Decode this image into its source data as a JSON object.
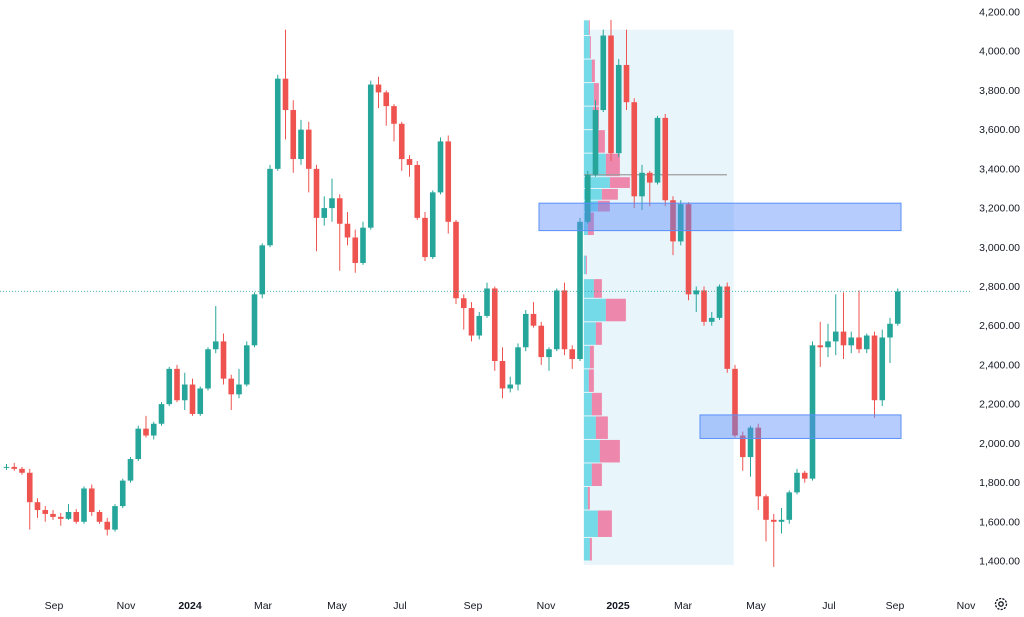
{
  "chart_data": {
    "type": "candlestick",
    "y_ticks": [
      "4,200.00",
      "4,000.00",
      "3,800.00",
      "3,600.00",
      "3,400.00",
      "3,200.00",
      "3,000.00",
      "2,800.00",
      "2,600.00",
      "2,400.00",
      "2,200.00",
      "2,000.00",
      "1,800.00",
      "1,600.00",
      "1,400.00"
    ],
    "y_tick_values": [
      4200,
      4000,
      3800,
      3600,
      3400,
      3200,
      3000,
      2800,
      2600,
      2400,
      2200,
      2000,
      1800,
      1600,
      1400
    ],
    "ylim": [
      1340,
      4240
    ],
    "x_ticks": [
      "Sep",
      "Nov",
      "2024",
      "Mar",
      "May",
      "Jul",
      "Sep",
      "Nov",
      "2025",
      "Mar",
      "May",
      "Jul",
      "Sep",
      "Nov"
    ],
    "x_tick_years": [
      "2024",
      "2025"
    ],
    "x_start": "2023-07-03",
    "weeks_visible": 125,
    "current_price": 2775,
    "colors": {
      "up": "#26a69a",
      "down": "#ef5350",
      "zone": "#5b8ff9",
      "profile_bg": "#e6f4fb",
      "vol_up": "#4dd0e1",
      "vol_down": "#f06292",
      "poc_line": "#9e9e9e"
    },
    "candles": [
      [
        1880,
        1895,
        1865,
        1880
      ],
      [
        1880,
        1900,
        1860,
        1870
      ],
      [
        1870,
        1880,
        1840,
        1850
      ],
      [
        1850,
        1870,
        1560,
        1700
      ],
      [
        1700,
        1720,
        1620,
        1660
      ],
      [
        1660,
        1680,
        1600,
        1640
      ],
      [
        1640,
        1660,
        1610,
        1625
      ],
      [
        1625,
        1645,
        1580,
        1615
      ],
      [
        1615,
        1690,
        1610,
        1650
      ],
      [
        1650,
        1665,
        1590,
        1600
      ],
      [
        1600,
        1780,
        1590,
        1770
      ],
      [
        1770,
        1790,
        1630,
        1650
      ],
      [
        1650,
        1660,
        1590,
        1600
      ],
      [
        1600,
        1620,
        1530,
        1560
      ],
      [
        1560,
        1690,
        1550,
        1680
      ],
      [
        1680,
        1820,
        1670,
        1810
      ],
      [
        1810,
        1930,
        1800,
        1920
      ],
      [
        1920,
        2090,
        1910,
        2075
      ],
      [
        2075,
        2140,
        2030,
        2040
      ],
      [
        2040,
        2110,
        2020,
        2100
      ],
      [
        2100,
        2210,
        2090,
        2200
      ],
      [
        2200,
        2390,
        2190,
        2380
      ],
      [
        2380,
        2400,
        2210,
        2220
      ],
      [
        2220,
        2360,
        2170,
        2300
      ],
      [
        2300,
        2330,
        2140,
        2150
      ],
      [
        2150,
        2290,
        2140,
        2280
      ],
      [
        2280,
        2490,
        2270,
        2480
      ],
      [
        2480,
        2700,
        2460,
        2520
      ],
      [
        2520,
        2560,
        2300,
        2330
      ],
      [
        2330,
        2350,
        2170,
        2250
      ],
      [
        2250,
        2380,
        2230,
        2300
      ],
      [
        2300,
        2520,
        2290,
        2500
      ],
      [
        2500,
        2770,
        2490,
        2760
      ],
      [
        2760,
        3020,
        2740,
        3010
      ],
      [
        3010,
        3420,
        3000,
        3400
      ],
      [
        3400,
        3880,
        3390,
        3860
      ],
      [
        3860,
        4110,
        3550,
        3700
      ],
      [
        3700,
        3750,
        3380,
        3450
      ],
      [
        3450,
        3650,
        3420,
        3600
      ],
      [
        3600,
        3640,
        3280,
        3400
      ],
      [
        3400,
        3420,
        2980,
        3150
      ],
      [
        3150,
        3260,
        3110,
        3200
      ],
      [
        3200,
        3350,
        3130,
        3250
      ],
      [
        3250,
        3270,
        2880,
        3120
      ],
      [
        3120,
        3180,
        3010,
        3050
      ],
      [
        3050,
        3090,
        2870,
        2920
      ],
      [
        2920,
        3130,
        2910,
        3100
      ],
      [
        3100,
        3850,
        3090,
        3830
      ],
      [
        3830,
        3870,
        3710,
        3790
      ],
      [
        3790,
        3800,
        3620,
        3720
      ],
      [
        3720,
        3730,
        3540,
        3630
      ],
      [
        3630,
        3640,
        3390,
        3450
      ],
      [
        3450,
        3470,
        3360,
        3420
      ],
      [
        3420,
        3440,
        3140,
        3150
      ],
      [
        3150,
        3180,
        2930,
        2950
      ],
      [
        2950,
        3290,
        2940,
        3280
      ],
      [
        3280,
        3560,
        3270,
        3540
      ],
      [
        3540,
        3570,
        3070,
        3130
      ],
      [
        3130,
        3140,
        2710,
        2740
      ],
      [
        2740,
        2760,
        2580,
        2690
      ],
      [
        2690,
        2720,
        2520,
        2550
      ],
      [
        2550,
        2670,
        2530,
        2650
      ],
      [
        2650,
        2820,
        2640,
        2790
      ],
      [
        2790,
        2800,
        2370,
        2420
      ],
      [
        2420,
        2490,
        2230,
        2280
      ],
      [
        2280,
        2340,
        2260,
        2300
      ],
      [
        2300,
        2510,
        2270,
        2490
      ],
      [
        2490,
        2680,
        2470,
        2660
      ],
      [
        2660,
        2720,
        2590,
        2600
      ],
      [
        2600,
        2620,
        2400,
        2440
      ],
      [
        2440,
        2490,
        2370,
        2480
      ],
      [
        2480,
        2790,
        2470,
        2780
      ],
      [
        2780,
        2820,
        2450,
        2480
      ],
      [
        2480,
        2500,
        2380,
        2430
      ],
      [
        2430,
        3150,
        2420,
        3130
      ],
      [
        3130,
        3390,
        3120,
        3370
      ],
      [
        3370,
        3750,
        3360,
        3700
      ],
      [
        3700,
        4110,
        3690,
        4080
      ],
      [
        4080,
        4160,
        3440,
        3480
      ],
      [
        3480,
        3960,
        3460,
        3930
      ],
      [
        3930,
        4110,
        3700,
        3740
      ],
      [
        3740,
        3760,
        3200,
        3260
      ],
      [
        3260,
        3420,
        3190,
        3380
      ],
      [
        3380,
        3390,
        3210,
        3330
      ],
      [
        3330,
        3670,
        3320,
        3660
      ],
      [
        3660,
        3680,
        3210,
        3240
      ],
      [
        3240,
        3260,
        2960,
        3030
      ],
      [
        3030,
        3240,
        3010,
        3220
      ],
      [
        3220,
        3230,
        2730,
        2760
      ],
      [
        2760,
        2800,
        2670,
        2780
      ],
      [
        2780,
        2800,
        2600,
        2620
      ],
      [
        2620,
        2670,
        2600,
        2640
      ],
      [
        2640,
        2810,
        2630,
        2800
      ],
      [
        2800,
        2820,
        2360,
        2380
      ],
      [
        2380,
        2400,
        2030,
        2040
      ],
      [
        2040,
        2060,
        1860,
        1930
      ],
      [
        1930,
        2090,
        1830,
        2080
      ],
      [
        2080,
        2100,
        1660,
        1730
      ],
      [
        1730,
        1740,
        1500,
        1610
      ],
      [
        1610,
        1640,
        1370,
        1600
      ],
      [
        1600,
        1670,
        1540,
        1610
      ],
      [
        1610,
        1760,
        1590,
        1750
      ],
      [
        1750,
        1870,
        1740,
        1850
      ],
      [
        1850,
        1860,
        1800,
        1820
      ],
      [
        1820,
        2520,
        1810,
        2500
      ],
      [
        2500,
        2620,
        2390,
        2490
      ],
      [
        2490,
        2610,
        2440,
        2520
      ],
      [
        2520,
        2760,
        2450,
        2570
      ],
      [
        2570,
        2770,
        2430,
        2500
      ],
      [
        2500,
        2570,
        2460,
        2540
      ],
      [
        2540,
        2780,
        2460,
        2480
      ],
      [
        2480,
        2560,
        2460,
        2550
      ],
      [
        2550,
        2570,
        2130,
        2220
      ],
      [
        2220,
        2580,
        2190,
        2540
      ],
      [
        2540,
        2640,
        2410,
        2610
      ],
      [
        2610,
        2790,
        2600,
        2775
      ]
    ]
  }
}
